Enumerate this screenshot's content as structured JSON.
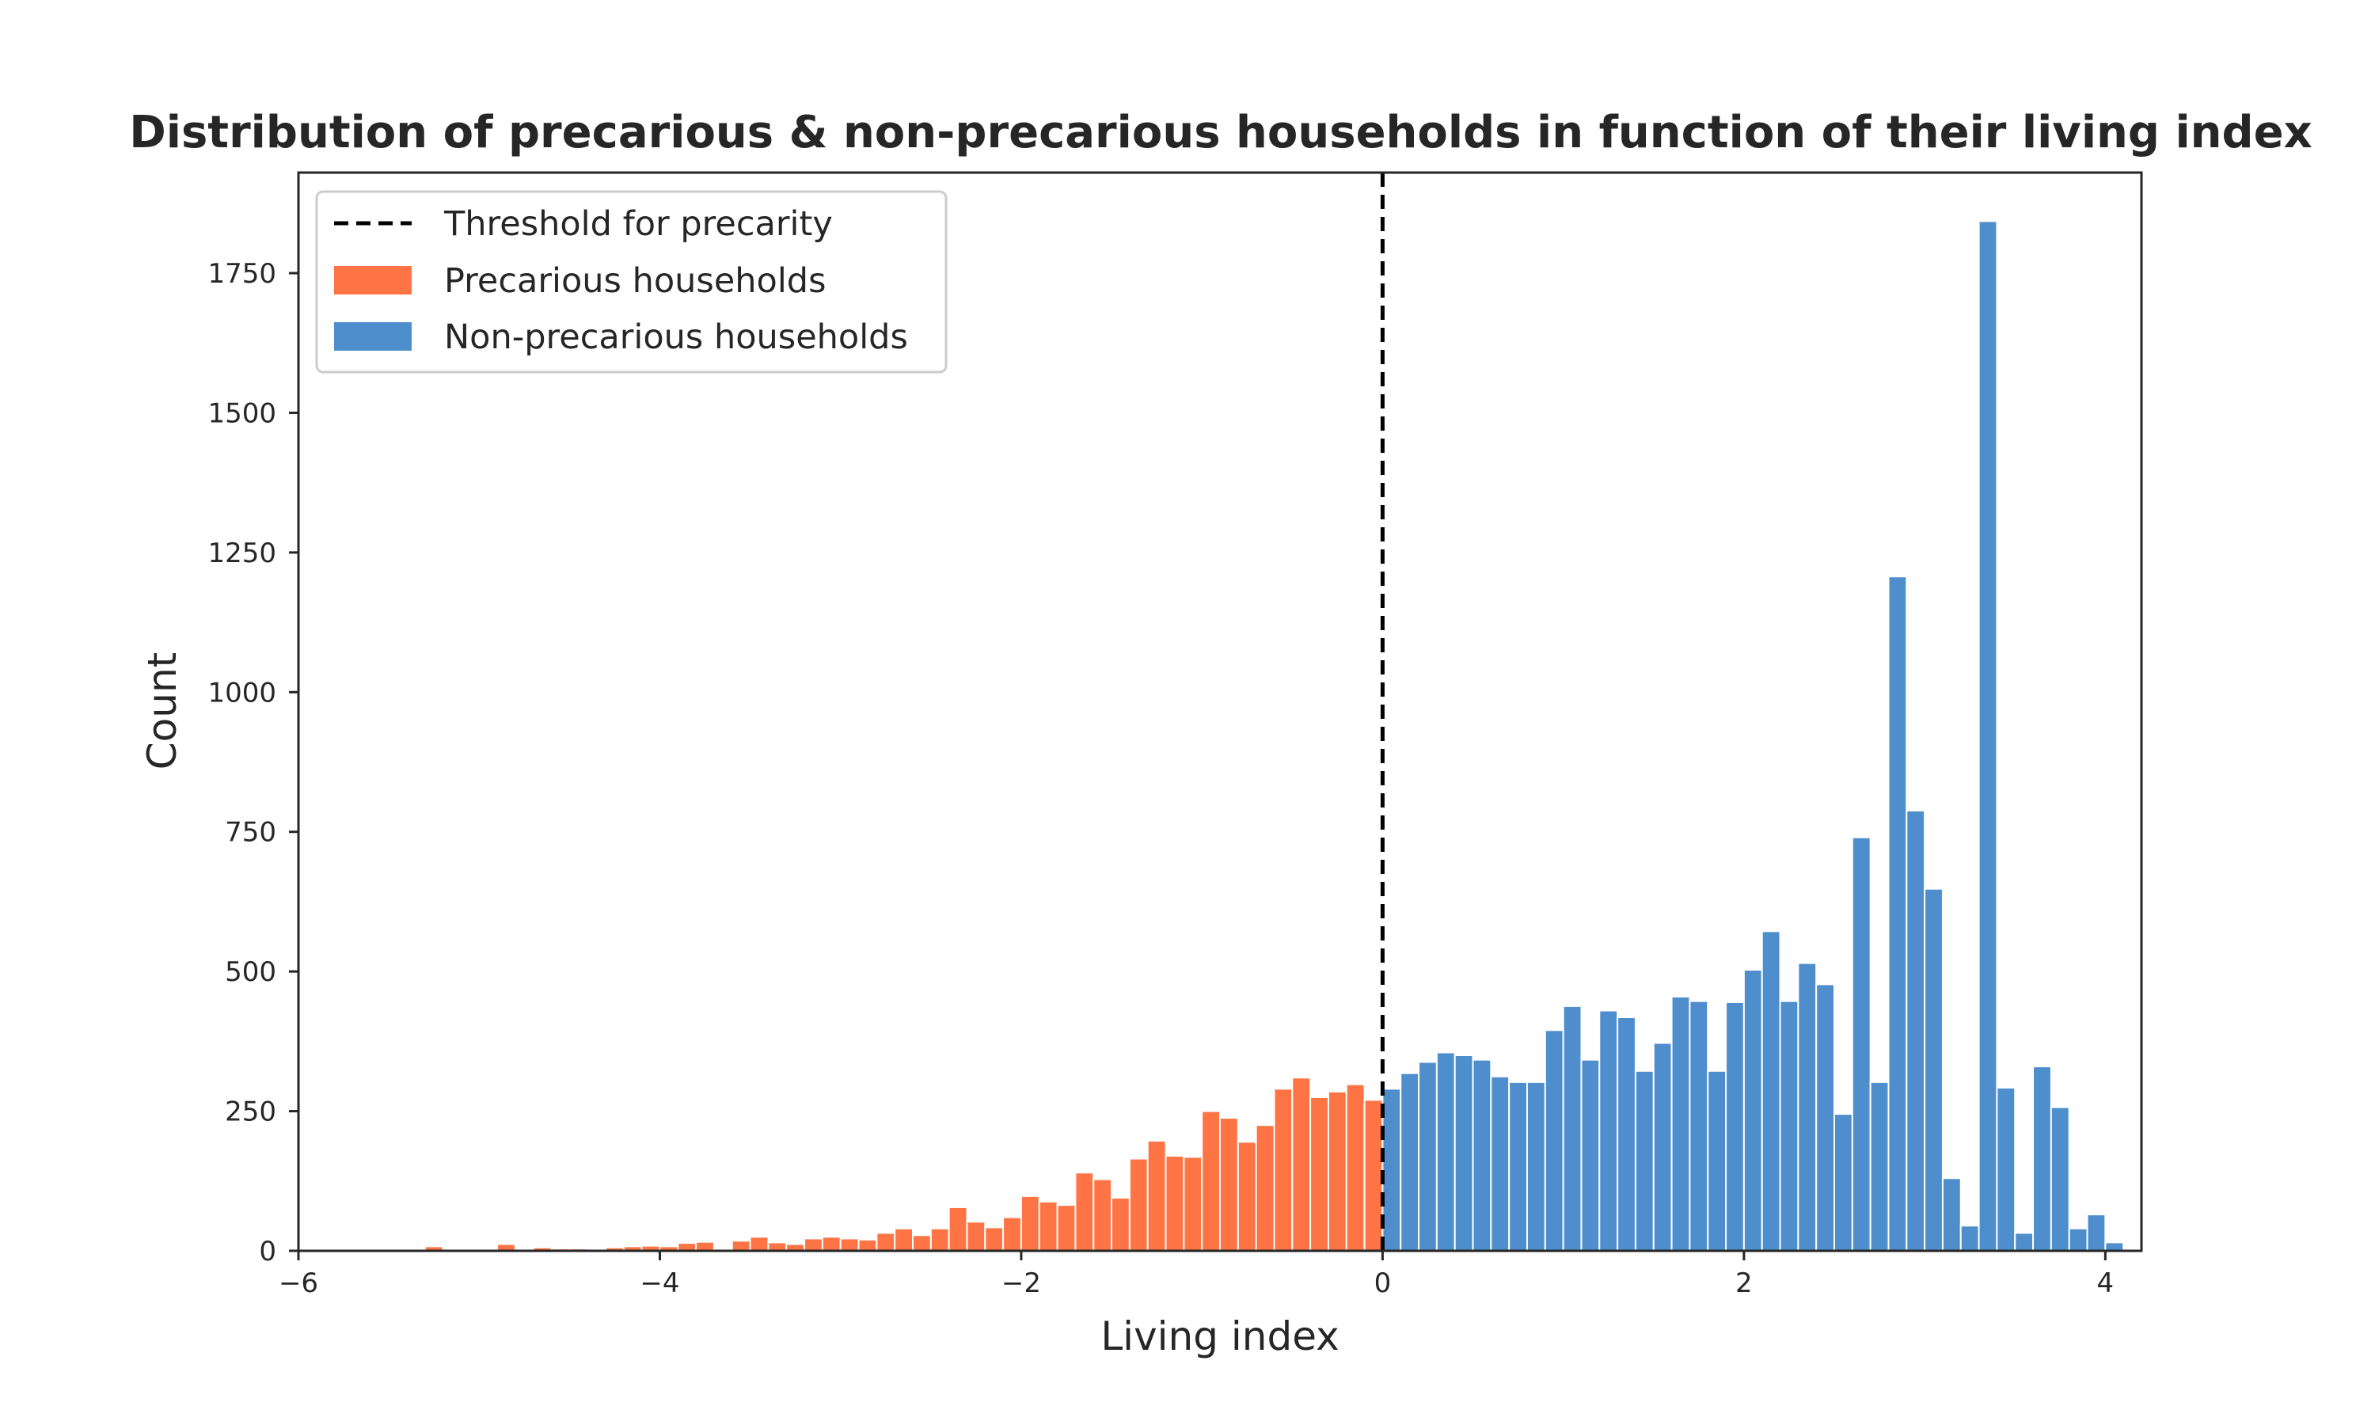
{
  "chart_data": {
    "type": "bar",
    "title": "Distribution of precarious & non-precarious households in function of their living index",
    "xlabel": "Living index",
    "ylabel": "Count",
    "xlim": [
      -6,
      4.2
    ],
    "ylim": [
      0,
      1930
    ],
    "bin_width": 0.1,
    "x_ticks": [
      -6,
      -4,
      -2,
      0,
      2,
      4
    ],
    "x_tick_labels": [
      "−6",
      "−4",
      "−2",
      "0",
      "2",
      "4"
    ],
    "y_ticks": [
      0,
      250,
      500,
      750,
      1000,
      1250,
      1500,
      1750
    ],
    "y_tick_labels": [
      "0",
      "250",
      "500",
      "750",
      "1000",
      "1250",
      "1500",
      "1750"
    ],
    "grid": false,
    "legend_position": "top-left",
    "threshold": {
      "name": "Threshold for precarity",
      "x": 0,
      "style": "dashed",
      "color": "#000000"
    },
    "series": [
      {
        "name": "Precarious households",
        "color": "#FF7444",
        "x_start": [
          -5.6,
          -5.5,
          -5.4,
          -5.3,
          -5.2,
          -5.1,
          -5.0,
          -4.9,
          -4.8,
          -4.7,
          -4.6,
          -4.5,
          -4.4,
          -4.3,
          -4.2,
          -4.1,
          -4.0,
          -3.9,
          -3.8,
          -3.7,
          -3.6,
          -3.5,
          -3.4,
          -3.3,
          -3.2,
          -3.1,
          -3.0,
          -2.9,
          -2.8,
          -2.7,
          -2.6,
          -2.5,
          -2.4,
          -2.3,
          -2.2,
          -2.1,
          -2.0,
          -1.9,
          -1.8,
          -1.7,
          -1.6,
          -1.5,
          -1.4,
          -1.3,
          -1.2,
          -1.1,
          -1.0,
          -0.9,
          -0.8,
          -0.7,
          -0.6,
          -0.5,
          -0.4,
          -0.3,
          -0.2,
          -0.1
        ],
        "values": [
          1,
          2,
          3,
          8,
          1,
          2,
          3,
          12,
          2,
          6,
          4,
          4,
          3,
          6,
          8,
          9,
          8,
          14,
          16,
          2,
          18,
          25,
          15,
          12,
          22,
          25,
          22,
          20,
          32,
          40,
          28,
          40,
          78,
          52,
          42,
          60,
          98,
          88,
          82,
          140,
          128,
          95,
          165,
          197,
          170,
          168,
          250,
          238,
          195,
          225,
          290,
          310,
          275,
          285,
          298,
          270
        ]
      },
      {
        "name": "Non-precarious households",
        "color": "#4F8ECC",
        "x_start": [
          0.0,
          0.1,
          0.2,
          0.3,
          0.4,
          0.5,
          0.6,
          0.7,
          0.8,
          0.9,
          1.0,
          1.1,
          1.2,
          1.3,
          1.4,
          1.5,
          1.6,
          1.7,
          1.8,
          1.9,
          2.0,
          2.1,
          2.2,
          2.3,
          2.4,
          2.5,
          2.6,
          2.7,
          2.8,
          2.9,
          3.0,
          3.1,
          3.2,
          3.3,
          3.4,
          3.5,
          3.6,
          3.7,
          3.8,
          3.9,
          4.0
        ],
        "values": [
          290,
          318,
          338,
          355,
          350,
          342,
          312,
          302,
          302,
          395,
          438,
          342,
          430,
          418,
          322,
          372,
          455,
          447,
          322,
          445,
          503,
          572,
          447,
          515,
          477,
          245,
          740,
          302,
          1207,
          788,
          648,
          130,
          45,
          1843,
          292,
          32,
          330,
          257,
          40,
          65,
          15
        ]
      }
    ]
  }
}
